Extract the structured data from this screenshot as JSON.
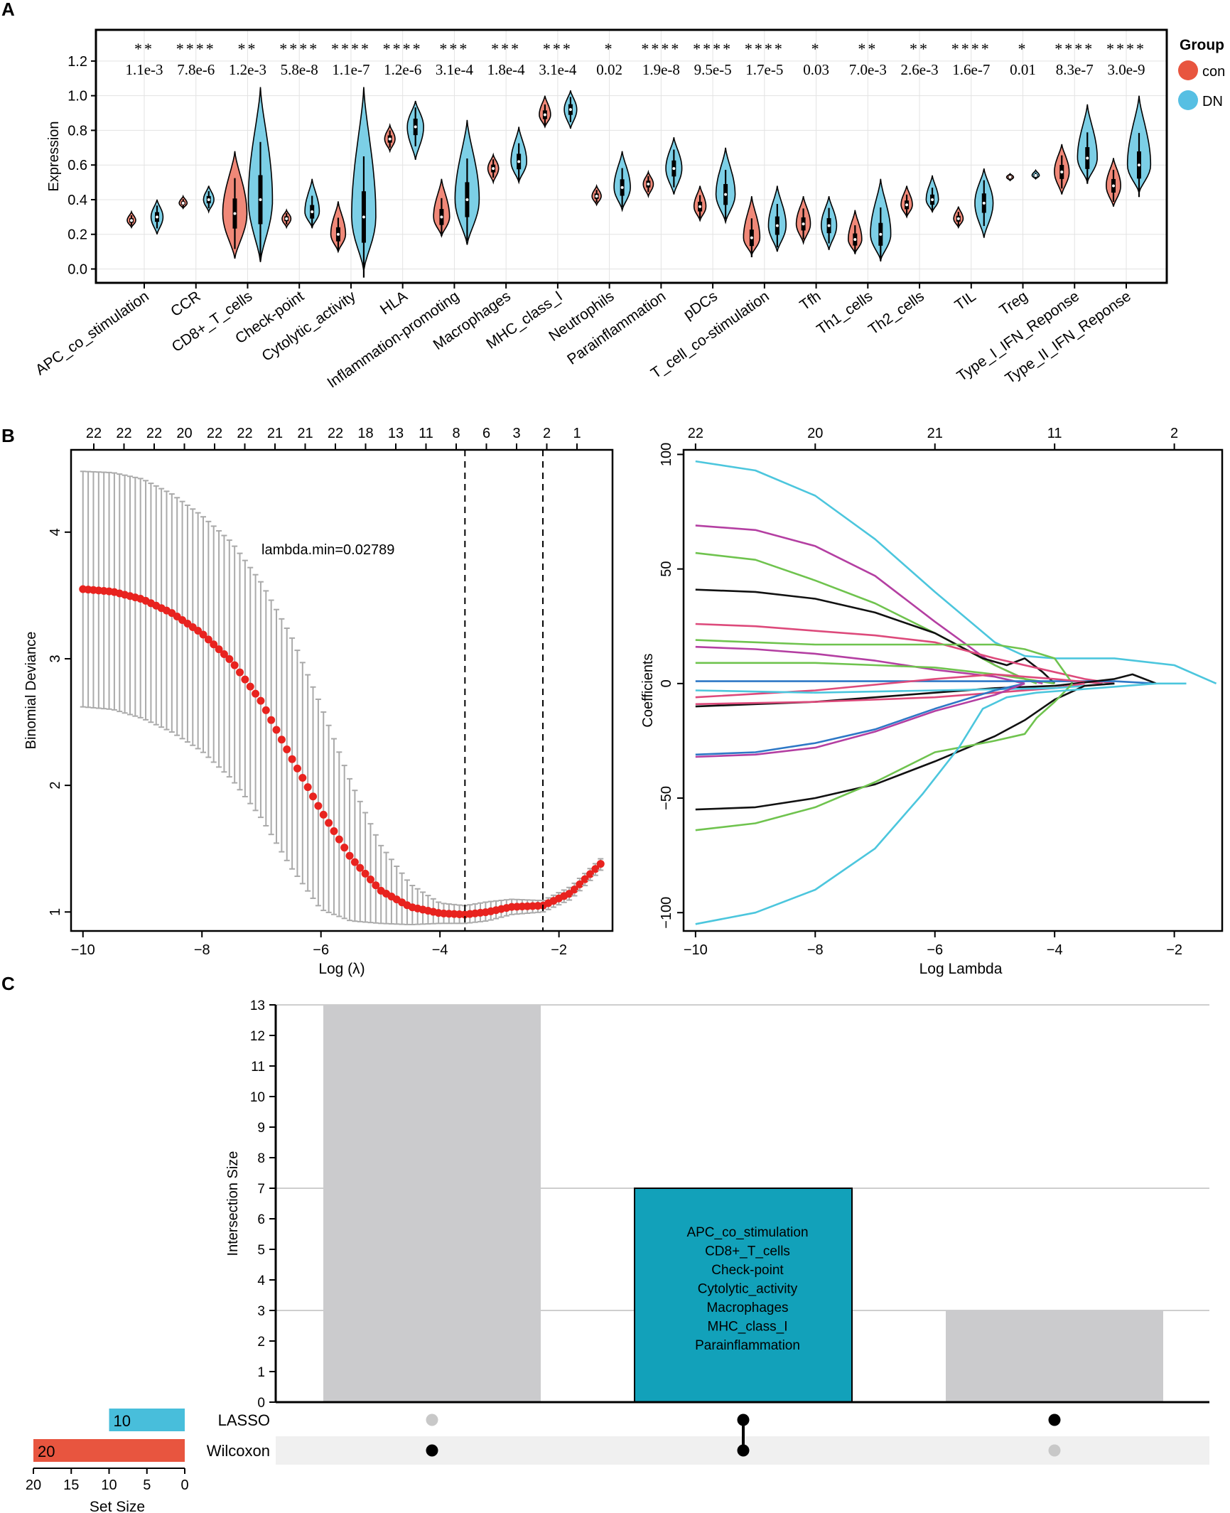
{
  "colors": {
    "con": "#f08878",
    "dn": "#7ccfe6",
    "con_legend": "#e8553f",
    "dn_legend": "#56bfe3",
    "red_dot": "#e8231f",
    "errbar": "#aaaaaa",
    "teal": "#12a1ba",
    "gray_bar": "#cbcbcd",
    "lasso_bar": "#48bedb",
    "wilcoxon_bar": "#e8553f"
  },
  "panels": {
    "A": "A",
    "B": "B",
    "C": "C"
  },
  "chart_data": [
    {
      "id": "violin",
      "type": "violin",
      "ylabel": "Expression",
      "ylim": [
        -0.08,
        1.38
      ],
      "yticks": [
        "0.0",
        "0.2",
        "0.4",
        "0.6",
        "0.8",
        "1.0",
        "1.2"
      ],
      "legend": {
        "title": "Group",
        "entries": [
          "con",
          "DN"
        ]
      },
      "categories": [
        "APC_co_stimulation",
        "CCR",
        "CD8+_T_cells",
        "Check-point",
        "Cytolytic_activity",
        "HLA",
        "Inflammation-promoting",
        "Macrophages",
        "MHC_class_I",
        "Neutrophils",
        "Parainflammation",
        "pDCs",
        "T_cell_co-stimulation",
        "Tfh",
        "Th1_cells",
        "Th2_cells",
        "TIL",
        "Treg",
        "Type_I_IFN_Reponse",
        "Type_II_IFN_Reponse"
      ],
      "stars": [
        "**",
        "****",
        "**",
        "****",
        "****",
        "****",
        "***",
        "***",
        "***",
        "*",
        "****",
        "****",
        "****",
        "*",
        "**",
        "**",
        "****",
        "*",
        "****",
        "****"
      ],
      "pvalues": [
        "1.1e-3",
        "7.8e-6",
        "1.2e-3",
        "5.8e-8",
        "1.1e-7",
        "1.2e-6",
        "3.1e-4",
        "1.8e-4",
        "3.1e-4",
        "0.02",
        "1.9e-8",
        "9.5e-5",
        "1.7e-5",
        "0.03",
        "7.0e-3",
        "2.6e-3",
        "1.6e-7",
        "0.01",
        "8.3e-7",
        "3.0e-9"
      ],
      "series": [
        {
          "name": "con",
          "medians": [
            0.28,
            0.38,
            0.32,
            0.29,
            0.2,
            0.75,
            0.3,
            0.58,
            0.89,
            0.42,
            0.49,
            0.36,
            0.18,
            0.26,
            0.17,
            0.37,
            0.29,
            0.53,
            0.56,
            0.48
          ],
          "mins": [
            0.24,
            0.35,
            0.06,
            0.24,
            0.1,
            0.68,
            0.19,
            0.5,
            0.82,
            0.37,
            0.42,
            0.28,
            0.08,
            0.15,
            0.09,
            0.3,
            0.24,
            0.51,
            0.43,
            0.36
          ],
          "maxs": [
            0.33,
            0.42,
            0.68,
            0.34,
            0.39,
            0.83,
            0.52,
            0.66,
            1.0,
            0.48,
            0.56,
            0.48,
            0.42,
            0.42,
            0.34,
            0.48,
            0.36,
            0.55,
            0.72,
            0.64
          ]
        },
        {
          "name": "DN",
          "medians": [
            0.3,
            0.4,
            0.4,
            0.33,
            0.3,
            0.82,
            0.4,
            0.62,
            0.92,
            0.47,
            0.58,
            0.43,
            0.25,
            0.25,
            0.2,
            0.4,
            0.38,
            0.54,
            0.64,
            0.6
          ],
          "mins": [
            0.2,
            0.33,
            0.04,
            0.24,
            -0.01,
            0.63,
            0.14,
            0.5,
            0.81,
            0.34,
            0.43,
            0.27,
            0.1,
            0.11,
            0.05,
            0.33,
            0.18,
            0.52,
            0.5,
            0.44
          ],
          "maxs": [
            0.4,
            0.48,
            1.05,
            0.52,
            1.05,
            0.97,
            0.86,
            0.82,
            1.03,
            0.68,
            0.76,
            0.7,
            0.48,
            0.42,
            0.52,
            0.54,
            0.58,
            0.57,
            0.95,
            1.0
          ]
        }
      ]
    },
    {
      "id": "cv",
      "type": "scatter",
      "xlabel": "Log (λ)",
      "ylabel": "Binomial Deviance",
      "xlim": [
        -10.2,
        -1.1
      ],
      "ylim": [
        0.85,
        4.65
      ],
      "xticks": [
        -10,
        -8,
        -6,
        -4,
        -2
      ],
      "yticks": [
        1,
        2,
        3,
        4
      ],
      "top_ticks": [
        "22",
        "22",
        "22",
        "20",
        "22",
        "22",
        "21",
        "21",
        "22",
        "18",
        "13",
        "11",
        "8",
        "6",
        "3",
        "2",
        "1"
      ],
      "annotation": "lambda.min=0.02789",
      "vlines": [
        -3.58,
        -2.27
      ],
      "curve": {
        "x": [
          -10,
          -9.5,
          -9,
          -8.5,
          -8,
          -7.5,
          -7,
          -6.5,
          -6,
          -5.5,
          -5,
          -4.5,
          -4,
          -3.58,
          -3.2,
          -2.8,
          -2.27,
          -1.8,
          -1.3
        ],
        "y": [
          3.55,
          3.53,
          3.47,
          3.36,
          3.2,
          2.98,
          2.66,
          2.22,
          1.8,
          1.43,
          1.17,
          1.04,
          0.99,
          0.98,
          1.0,
          1.04,
          1.05,
          1.15,
          1.38
        ]
      },
      "error_upper": {
        "x": [
          -10,
          -9.5,
          -9,
          -8.5,
          -8,
          -7.5,
          -7,
          -6.5,
          -6,
          -5.5,
          -5,
          -4.5,
          -4,
          -3.58,
          -3.2,
          -2.8,
          -2.27,
          -1.8,
          -1.3
        ],
        "y": [
          4.48,
          4.47,
          4.42,
          4.3,
          4.13,
          3.92,
          3.6,
          3.18,
          2.63,
          2.03,
          1.53,
          1.22,
          1.07,
          1.05,
          1.08,
          1.1,
          1.09,
          1.2,
          1.42
        ]
      },
      "error_lower": {
        "x": [
          -10,
          -9.5,
          -9,
          -8.5,
          -8,
          -7.5,
          -7,
          -6.5,
          -6,
          -5.5,
          -5,
          -4.5,
          -4,
          -3.58,
          -3.2,
          -2.8,
          -2.27,
          -1.8,
          -1.3
        ],
        "y": [
          2.62,
          2.6,
          2.53,
          2.42,
          2.27,
          2.05,
          1.74,
          1.35,
          1.02,
          0.93,
          0.91,
          0.9,
          0.91,
          0.91,
          0.93,
          0.98,
          1.0,
          1.1,
          1.33
        ]
      }
    },
    {
      "id": "path",
      "type": "line",
      "xlabel": "Log Lambda",
      "ylabel": "Coefficients",
      "xlim": [
        -10.2,
        -1.2
      ],
      "ylim": [
        -108,
        102
      ],
      "xticks": [
        -10,
        -8,
        -6,
        -4,
        -2
      ],
      "yticks": [
        -100,
        -50,
        0,
        50,
        100
      ],
      "top_ticks": [
        {
          "x": -10,
          "label": "22"
        },
        {
          "x": -8,
          "label": "20"
        },
        {
          "x": -6,
          "label": "21"
        },
        {
          "x": -4,
          "label": "11"
        },
        {
          "x": -2,
          "label": "2"
        }
      ],
      "series": [
        {
          "color": "#4cc6dd",
          "x": [
            -10,
            -9,
            -8,
            -7,
            -6,
            -5,
            -4.5,
            -4,
            -3,
            -2,
            -1.3
          ],
          "y": [
            97,
            93,
            82,
            63,
            40,
            18,
            12,
            11,
            11,
            8,
            0
          ]
        },
        {
          "color": "#b43fa2",
          "x": [
            -10,
            -9,
            -8,
            -7,
            -6,
            -5,
            -4.5,
            -4.2
          ],
          "y": [
            69,
            67,
            60,
            47,
            27,
            8,
            2,
            0
          ]
        },
        {
          "color": "#6fc34e",
          "x": [
            -10,
            -9,
            -8,
            -7,
            -6,
            -5,
            -4.5,
            -4.3
          ],
          "y": [
            57,
            54,
            45,
            35,
            22,
            8,
            2,
            0
          ]
        },
        {
          "color": "#111111",
          "x": [
            -10,
            -9,
            -8,
            -7,
            -6,
            -5.2,
            -4.8,
            -4.5,
            -4.2,
            -4
          ],
          "y": [
            41,
            40,
            37,
            31,
            22,
            11,
            8,
            11,
            5,
            0
          ]
        },
        {
          "color": "#dd4a7b",
          "x": [
            -10,
            -9,
            -8,
            -7,
            -6,
            -5,
            -4,
            -3.5,
            -3
          ],
          "y": [
            26,
            25,
            23,
            21,
            18,
            11,
            5,
            2,
            0
          ]
        },
        {
          "color": "#6fc34e",
          "x": [
            -10,
            -9,
            -8,
            -7,
            -6,
            -5.5,
            -5,
            -4.5,
            -4,
            -3.7
          ],
          "y": [
            19,
            18,
            17,
            17,
            17,
            17,
            17,
            15,
            11,
            0
          ]
        },
        {
          "color": "#b43fa2",
          "x": [
            -10,
            -9,
            -8,
            -7,
            -6,
            -5,
            -4.5
          ],
          "y": [
            16,
            15,
            13,
            10,
            6,
            3,
            0
          ]
        },
        {
          "color": "#6fc34e",
          "x": [
            -10,
            -9,
            -8,
            -7,
            -6,
            -5,
            -4
          ],
          "y": [
            9,
            9,
            9,
            8,
            7,
            4,
            0
          ]
        },
        {
          "color": "#2e78c6",
          "x": [
            -10,
            -8,
            -6,
            -5,
            -4,
            -3,
            -2.3
          ],
          "y": [
            1,
            1,
            1,
            1,
            1,
            1,
            0
          ]
        },
        {
          "color": "#dd4a7b",
          "x": [
            -10,
            -8,
            -6,
            -5,
            -4,
            -3.2
          ],
          "y": [
            -6,
            -3,
            2,
            4,
            2,
            0
          ]
        },
        {
          "color": "#111111",
          "x": [
            -10,
            -9,
            -8,
            -7,
            -6,
            -5,
            -4,
            -3,
            -2.7,
            -2.3
          ],
          "y": [
            -10,
            -9,
            -8,
            -6,
            -4,
            -2,
            -1,
            2,
            4,
            0
          ]
        },
        {
          "color": "#dd4a7b",
          "x": [
            -10,
            -8,
            -6,
            -5,
            -4,
            -3.5
          ],
          "y": [
            -9,
            -8,
            -6,
            -4,
            -2,
            0
          ]
        },
        {
          "color": "#4cc6dd",
          "x": [
            -10,
            -8,
            -6,
            -4,
            -3
          ],
          "y": [
            -3,
            -4,
            -3,
            -2,
            0
          ]
        },
        {
          "color": "#2e78c6",
          "x": [
            -10,
            -9,
            -8,
            -7,
            -6,
            -5,
            -4.5
          ],
          "y": [
            -31,
            -30,
            -26,
            -20,
            -11,
            -3,
            0
          ]
        },
        {
          "color": "#b43fa2",
          "x": [
            -10,
            -9,
            -8,
            -7,
            -6,
            -5,
            -4.5
          ],
          "y": [
            -32,
            -31,
            -28,
            -21,
            -12,
            -5,
            0
          ]
        },
        {
          "color": "#111111",
          "x": [
            -10,
            -9,
            -8,
            -7,
            -6,
            -5,
            -4.5,
            -4,
            -3.5,
            -3
          ],
          "y": [
            -55,
            -54,
            -50,
            -44,
            -34,
            -23,
            -16,
            -7,
            -1,
            0
          ]
        },
        {
          "color": "#6fc34e",
          "x": [
            -10,
            -9,
            -8,
            -7,
            -6,
            -5,
            -4.5,
            -4.3,
            -4,
            -3.7
          ],
          "y": [
            -64,
            -61,
            -54,
            -43,
            -30,
            -25,
            -22,
            -15,
            -8,
            0
          ]
        },
        {
          "color": "#4cc6dd",
          "x": [
            -10,
            -9,
            -8,
            -7,
            -6.2,
            -5.6,
            -5.2,
            -4.8,
            -4.3,
            -3.8,
            -3.3,
            -2.8,
            -2.3,
            -1.8
          ],
          "y": [
            -105,
            -100,
            -90,
            -72,
            -48,
            -28,
            -11,
            -6,
            -4,
            -3,
            -2,
            -1,
            0,
            0
          ]
        }
      ]
    },
    {
      "id": "upset",
      "type": "bar",
      "ylabel": "Intersection Size",
      "ylim": [
        0,
        13
      ],
      "yticks": [
        0,
        1,
        2,
        3,
        4,
        5,
        6,
        7,
        8,
        9,
        10,
        11,
        12,
        13
      ],
      "values": [
        13,
        7,
        3
      ],
      "membership": [
        [
          false,
          true
        ],
        [
          true,
          true
        ],
        [
          true,
          false
        ]
      ],
      "sets": [
        {
          "name": "LASSO",
          "size": 10
        },
        {
          "name": "Wilcoxon",
          "size": 20
        }
      ],
      "set_size_label": "Set Size",
      "set_size_ticks": [
        20,
        15,
        10,
        5,
        0
      ],
      "highlight_index": 1,
      "highlight_genes": [
        "APC_co_stimulation",
        "CD8+_T_cells",
        "Check-point",
        "Cytolytic_activity",
        "Macrophages",
        "MHC_class_I",
        "Parainflammation"
      ]
    }
  ]
}
